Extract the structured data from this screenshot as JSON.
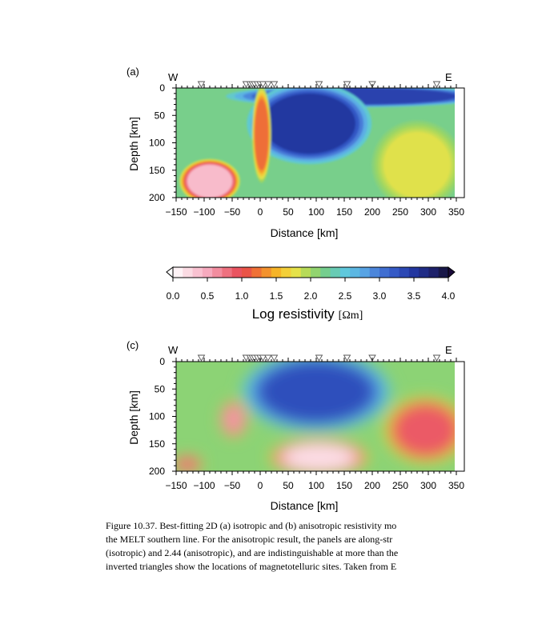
{
  "panel_a_label": "(a)",
  "panel_c_label": "(c)",
  "west_label": "W",
  "east_label": "E",
  "colorbar": {
    "ticks": [
      "0.0",
      "0.5",
      "1.0",
      "1.5",
      "2.0",
      "2.5",
      "3.0",
      "3.5",
      "4.0"
    ],
    "label": "Log resistivity",
    "unit": "[Ωm]"
  },
  "caption": [
    "Figure 10.37.  Best-fitting 2D (a) isotropic and (b) anisotropic resistivity mo",
    "the MELT southern line. For the anisotropic result, the panels are along-str",
    "(isotropic) and 2.44 (anisotropic), and are indistinguishable at more than the",
    "inverted triangles show the locations of magnetotelluric sites. Taken from E"
  ],
  "chart_data": [
    {
      "type": "heatmap",
      "panel": "(a)",
      "xlabel": "Distance [km]",
      "ylabel": "Depth [km]",
      "xlim": [
        -150,
        350
      ],
      "ylim": [
        200,
        0
      ],
      "x_ticks": [
        "−150",
        "−100",
        "−50",
        "0",
        "50",
        "100",
        "150",
        "200",
        "250",
        "300",
        "350"
      ],
      "y_ticks": [
        "0",
        "50",
        "100",
        "150",
        "200"
      ],
      "site_locations_km": [
        -105,
        -25,
        -18,
        -14,
        -10,
        -5,
        0,
        5,
        14,
        25,
        105,
        155,
        200,
        315
      ],
      "style": "blocky",
      "background_log_resistivity": 2.2,
      "features": [
        {
          "name": "resistive lid",
          "x": [
            0,
            350
          ],
          "depth": [
            0,
            30
          ],
          "log_resistivity": 3.4
        },
        {
          "name": "resistive body",
          "x": [
            5,
            170
          ],
          "depth": [
            10,
            120
          ],
          "log_resistivity": 3.5
        },
        {
          "name": "conductor beneath ridge",
          "x": [
            -10,
            15
          ],
          "depth": [
            20,
            150
          ],
          "log_resistivity": 1.2
        },
        {
          "name": "west conductor",
          "x": [
            -130,
            -50
          ],
          "depth": [
            140,
            200
          ],
          "log_resistivity": 0.4
        },
        {
          "name": "east moderate zone",
          "x": [
            220,
            340
          ],
          "depth": [
            80,
            200
          ],
          "log_resistivity": 1.8
        }
      ]
    },
    {
      "type": "heatmap",
      "panel": "(c)",
      "xlabel": "Distance [km]",
      "ylabel": "Depth [km]",
      "xlim": [
        -150,
        350
      ],
      "ylim": [
        200,
        0
      ],
      "x_ticks": [
        "−150",
        "−100",
        "−50",
        "0",
        "50",
        "100",
        "150",
        "200",
        "250",
        "300",
        "350"
      ],
      "y_ticks": [
        "0",
        "50",
        "100",
        "150",
        "200"
      ],
      "site_locations_km": [
        -105,
        -25,
        -18,
        -14,
        -10,
        -5,
        0,
        5,
        14,
        25,
        105,
        155,
        200,
        315
      ],
      "style": "smooth",
      "background_log_resistivity": 2.1,
      "features": [
        {
          "name": "resistive wedge",
          "x": [
            0,
            200
          ],
          "depth": [
            0,
            110
          ],
          "log_resistivity": 3.3
        },
        {
          "name": "west conductor",
          "x": [
            -65,
            -30
          ],
          "depth": [
            80,
            130
          ],
          "log_resistivity": 0.6
        },
        {
          "name": "deep conductor",
          "x": [
            40,
            170
          ],
          "depth": [
            150,
            200
          ],
          "log_resistivity": 0.2
        },
        {
          "name": "east conductor",
          "x": [
            240,
            350
          ],
          "depth": [
            80,
            170
          ],
          "log_resistivity": 0.9
        },
        {
          "name": "southwest conductor",
          "x": [
            -150,
            -110
          ],
          "depth": [
            175,
            200
          ],
          "log_resistivity": 0.8
        }
      ]
    }
  ]
}
